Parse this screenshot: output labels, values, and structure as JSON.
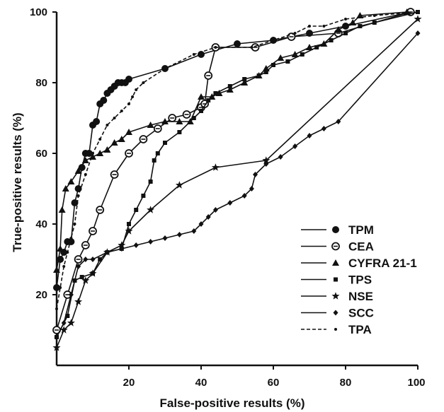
{
  "chart_data": {
    "type": "line",
    "title": "",
    "xlabel": "False-positive results (%)",
    "ylabel": "True-positive results (%)",
    "xlim": [
      0,
      100
    ],
    "ylim": [
      0,
      100
    ],
    "xticks": [
      "20",
      "40",
      "60",
      "80",
      "100"
    ],
    "yticks": [
      "20",
      "40",
      "60",
      "80",
      "100"
    ],
    "grid": false,
    "legend_position": "bottom-right",
    "series": [
      {
        "name": "TPM",
        "marker": "filled-circle",
        "dash": "solid",
        "x": [
          0,
          1,
          2,
          3,
          4,
          5,
          6,
          7,
          8,
          9,
          10,
          11,
          12,
          13,
          14,
          15,
          16,
          17,
          18,
          19,
          20,
          30,
          40,
          50,
          60,
          70,
          80,
          98
        ],
        "y": [
          22,
          30,
          32,
          35,
          35,
          46,
          50,
          56,
          60,
          60,
          68,
          69,
          74,
          75,
          77,
          78,
          79,
          80,
          80,
          80,
          81,
          84,
          88,
          91,
          92,
          94,
          96,
          100
        ]
      },
      {
        "name": "CEA",
        "marker": "circled-dot",
        "dash": "solid",
        "x": [
          0,
          3,
          6,
          8,
          10,
          12,
          16,
          20,
          24,
          28,
          32,
          36,
          40,
          41,
          42,
          44,
          55,
          65,
          78,
          98
        ],
        "y": [
          10,
          20,
          30,
          34,
          38,
          44,
          54,
          60,
          64,
          67,
          70,
          71,
          73,
          74,
          82,
          90,
          90,
          93,
          94,
          100
        ]
      },
      {
        "name": "CYFRA 21-1",
        "marker": "filled-triangle",
        "dash": "solid",
        "x": [
          0,
          1,
          1.5,
          2.5,
          4,
          6,
          8,
          10,
          12,
          14,
          16,
          18,
          20,
          26,
          30,
          34,
          37,
          40,
          43,
          45,
          48,
          52,
          56,
          58,
          62,
          66,
          70,
          74,
          78,
          82,
          84,
          97
        ],
        "y": [
          27,
          33,
          44,
          50,
          52,
          55,
          58,
          59,
          60,
          61,
          63,
          64,
          66,
          68,
          69,
          69,
          69,
          76,
          76,
          77,
          78,
          80,
          82,
          84,
          87,
          88,
          90,
          91,
          95,
          97,
          99,
          100
        ]
      },
      {
        "name": "TPS",
        "marker": "filled-square",
        "dash": "solid",
        "x": [
          0,
          3,
          5,
          7,
          10,
          12,
          14,
          18,
          20,
          22,
          24,
          26,
          27,
          28,
          30,
          34,
          38,
          40,
          42,
          44,
          48,
          52,
          56,
          58,
          60,
          64,
          68,
          72,
          76,
          80,
          84,
          88,
          100
        ],
        "y": [
          8,
          14,
          24,
          25,
          26,
          30,
          32,
          33,
          40,
          44,
          48,
          52,
          58,
          60,
          63,
          66,
          70,
          72,
          75,
          77,
          79,
          81,
          82,
          83,
          85,
          86,
          88,
          90,
          92,
          94,
          96,
          97,
          100
        ]
      },
      {
        "name": "NSE",
        "marker": "filled-star",
        "dash": "solid",
        "x": [
          0,
          2,
          4,
          6,
          8,
          10,
          14,
          18,
          20,
          26,
          34,
          44,
          58,
          100
        ],
        "y": [
          5,
          10,
          12,
          18,
          24,
          26,
          32,
          34,
          38,
          44,
          51,
          56,
          58,
          98
        ]
      },
      {
        "name": "SCC",
        "marker": "filled-diamond",
        "dash": "solid",
        "x": [
          0,
          2,
          4,
          6,
          8,
          10,
          14,
          18,
          22,
          26,
          30,
          34,
          38,
          40,
          42,
          44,
          48,
          52,
          54,
          55,
          58,
          62,
          66,
          70,
          74,
          78,
          100
        ],
        "y": [
          8,
          12,
          20,
          28,
          30,
          30,
          32,
          33,
          34,
          35,
          36,
          37,
          38,
          40,
          42,
          44,
          46,
          48,
          50,
          54,
          57,
          59,
          62,
          65,
          67,
          69,
          94
        ]
      },
      {
        "name": "TPA",
        "marker": "small-dot",
        "dash": "dashed",
        "x": [
          0,
          1,
          2,
          3,
          4,
          5,
          6,
          8,
          10,
          12,
          14,
          16,
          18,
          20,
          21,
          22,
          24,
          30,
          38,
          44,
          54,
          60,
          66,
          70,
          74,
          80,
          88,
          100
        ],
        "y": [
          16,
          22,
          28,
          32,
          36,
          40,
          48,
          54,
          60,
          64,
          68,
          70,
          72,
          74,
          76,
          78,
          80,
          84,
          88,
          90,
          90,
          92,
          94,
          96,
          96,
          98,
          99,
          100
        ]
      }
    ]
  }
}
